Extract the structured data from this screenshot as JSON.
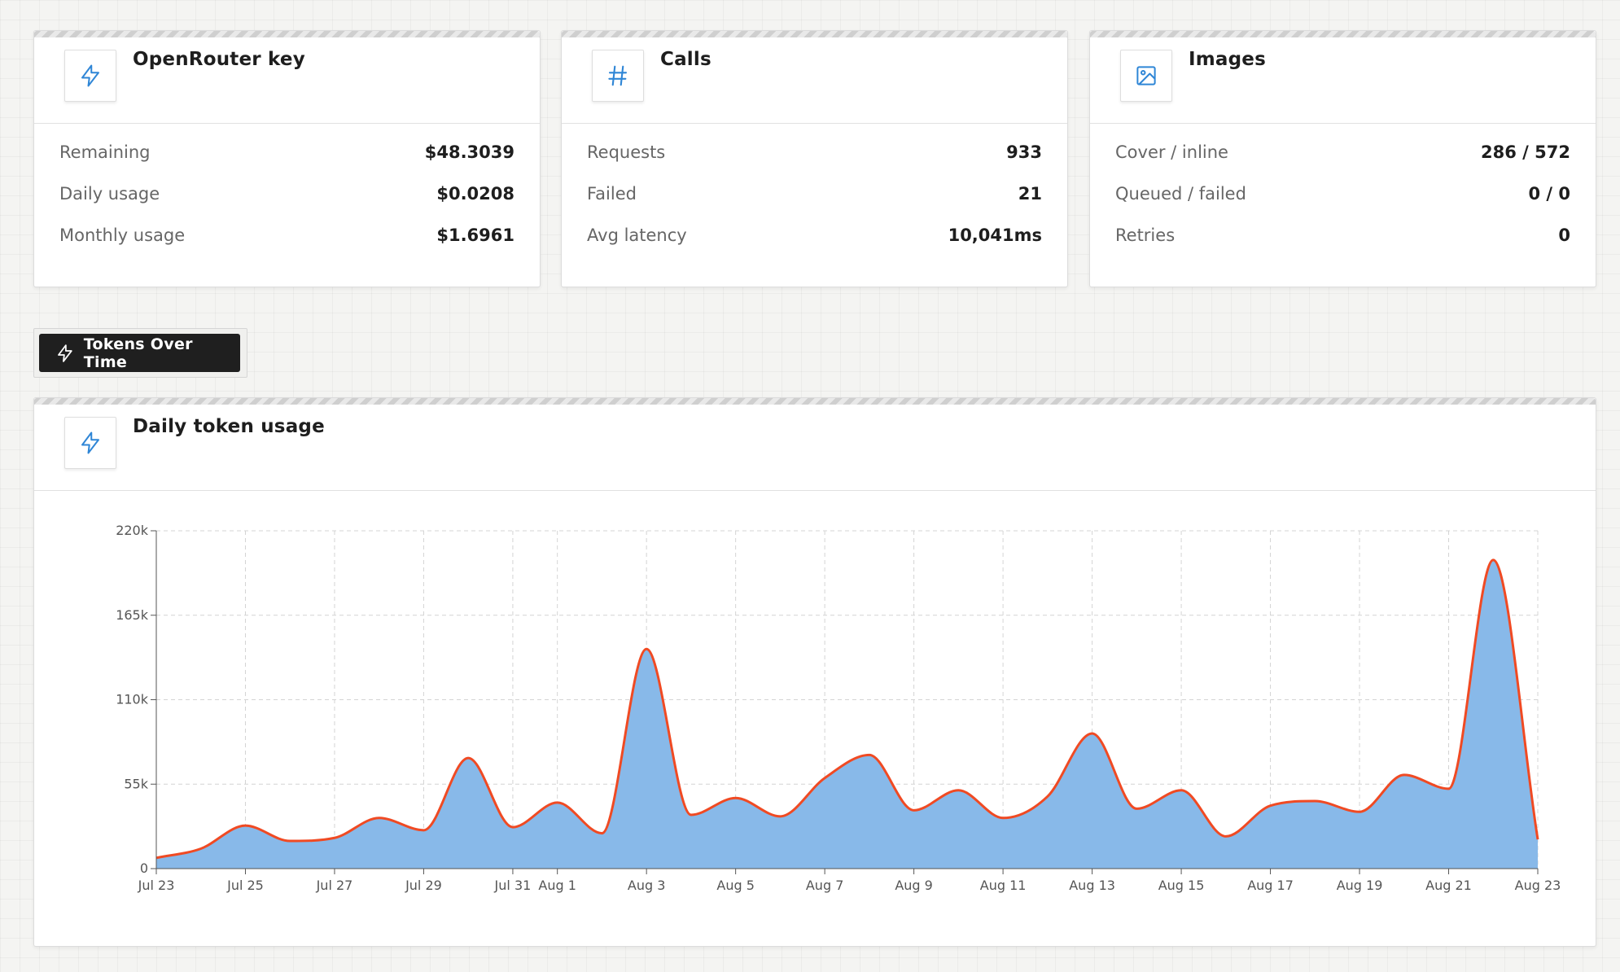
{
  "cards": [
    {
      "title": "OpenRouter key",
      "icon": "bolt-icon",
      "rows": [
        {
          "label": "Remaining",
          "value": "$48.3039"
        },
        {
          "label": "Daily usage",
          "value": "$0.0208"
        },
        {
          "label": "Monthly usage",
          "value": "$1.6961"
        }
      ]
    },
    {
      "title": "Calls",
      "icon": "hash-icon",
      "rows": [
        {
          "label": "Requests",
          "value": "933"
        },
        {
          "label": "Failed",
          "value": "21"
        },
        {
          "label": "Avg latency",
          "value": "10,041ms"
        }
      ]
    },
    {
      "title": "Images",
      "icon": "image-icon",
      "rows": [
        {
          "label": "Cover / inline",
          "value": "286 / 572"
        },
        {
          "label": "Queued / failed",
          "value": "0 / 0"
        },
        {
          "label": "Retries",
          "value": "0"
        }
      ]
    }
  ],
  "tab": {
    "label": "Tokens Over Time",
    "icon": "bolt-icon"
  },
  "chart_card": {
    "title": "Daily token usage",
    "icon": "bolt-icon"
  },
  "colors": {
    "accent": "#2f86d6",
    "area_fill": "#88b9e9",
    "line": "#f04a23"
  },
  "chart_data": {
    "type": "area",
    "title": "",
    "xlabel": "",
    "ylabel": "",
    "ylim": [
      0,
      220000
    ],
    "y_ticks": [
      0,
      55000,
      110000,
      165000,
      220000
    ],
    "y_tick_labels": [
      "0",
      "55k",
      "110k",
      "165k",
      "220k"
    ],
    "x_tick_labels": [
      "Jul 23",
      "Jul 25",
      "Jul 27",
      "Jul 29",
      "Jul 31",
      "Aug 1",
      "Aug 3",
      "Aug 5",
      "Aug 7",
      "Aug 9",
      "Aug 11",
      "Aug 13",
      "Aug 15",
      "Aug 17",
      "Aug 19",
      "Aug 21",
      "Aug 23"
    ],
    "x": [
      "Jul 23",
      "Jul 24",
      "Jul 25",
      "Jul 26",
      "Jul 27",
      "Jul 28",
      "Jul 29",
      "Jul 30",
      "Jul 31",
      "Aug 1",
      "Aug 2",
      "Aug 3",
      "Aug 4",
      "Aug 5",
      "Aug 6",
      "Aug 7",
      "Aug 8",
      "Aug 9",
      "Aug 10",
      "Aug 11",
      "Aug 12",
      "Aug 13",
      "Aug 14",
      "Aug 15",
      "Aug 16",
      "Aug 17",
      "Aug 18",
      "Aug 19",
      "Aug 20",
      "Aug 21",
      "Aug 22",
      "Aug 23"
    ],
    "series": [
      {
        "values": [
          7000,
          13000,
          28000,
          18000,
          20000,
          33000,
          25000,
          72000,
          27000,
          43000,
          23000,
          143000,
          35000,
          46000,
          34000,
          59000,
          74000,
          38000,
          51000,
          33000,
          47000,
          88000,
          39000,
          51000,
          21000,
          41000,
          44000,
          37000,
          61000,
          52000,
          201000,
          19000
        ]
      }
    ],
    "grid": true,
    "legend": "none"
  }
}
